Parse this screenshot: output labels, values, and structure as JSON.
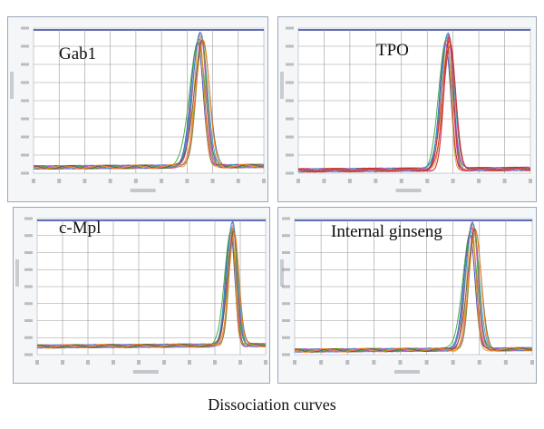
{
  "caption": "Dissociation curves",
  "colors": {
    "panel_bg": "#f4f6f8",
    "panel_border": "#9aa7b8",
    "plot_bg": "#ffffff",
    "grid": "#9a9a9a",
    "top_line": "#2c3f9c",
    "curves": [
      "#2e3fb8",
      "#3aa33a",
      "#d03030",
      "#d6a020",
      "#8a3fc0",
      "#23a6c4",
      "#e060c0",
      "#6b8e23",
      "#5a5a5a",
      "#ff7f0e"
    ],
    "tpo_main": "#c9302c"
  },
  "chart_data": [
    {
      "type": "line",
      "label": "Gab1",
      "peak_x": 0.725,
      "peak_y": 0.96,
      "width": 0.04,
      "baseline_y": 0.04,
      "num_curves": 10,
      "spread_x": 0.012,
      "spread_y": 0.06,
      "dominant_color": null,
      "ylim": [
        0,
        1
      ],
      "xlim": [
        0,
        1
      ]
    },
    {
      "type": "line",
      "label": "TPO",
      "peak_x": 0.645,
      "peak_y": 0.98,
      "width": 0.035,
      "baseline_y": 0.02,
      "num_curves": 10,
      "spread_x": 0.01,
      "spread_y": 0.1,
      "dominant_color": "#c9302c",
      "ylim": [
        0,
        1
      ],
      "xlim": [
        0,
        1
      ]
    },
    {
      "type": "line",
      "label": "c-Mpl",
      "peak_x": 0.855,
      "peak_y": 0.97,
      "width": 0.03,
      "baseline_y": 0.06,
      "num_curves": 10,
      "spread_x": 0.008,
      "spread_y": 0.08,
      "dominant_color": null,
      "ylim": [
        0,
        1
      ],
      "xlim": [
        0,
        1
      ]
    },
    {
      "type": "line",
      "label": "Internal ginseng",
      "peak_x": 0.75,
      "peak_y": 0.97,
      "width": 0.035,
      "baseline_y": 0.03,
      "num_curves": 10,
      "spread_x": 0.012,
      "spread_y": 0.08,
      "dominant_color": null,
      "ylim": [
        0,
        1
      ],
      "xlim": [
        0,
        1
      ]
    }
  ]
}
